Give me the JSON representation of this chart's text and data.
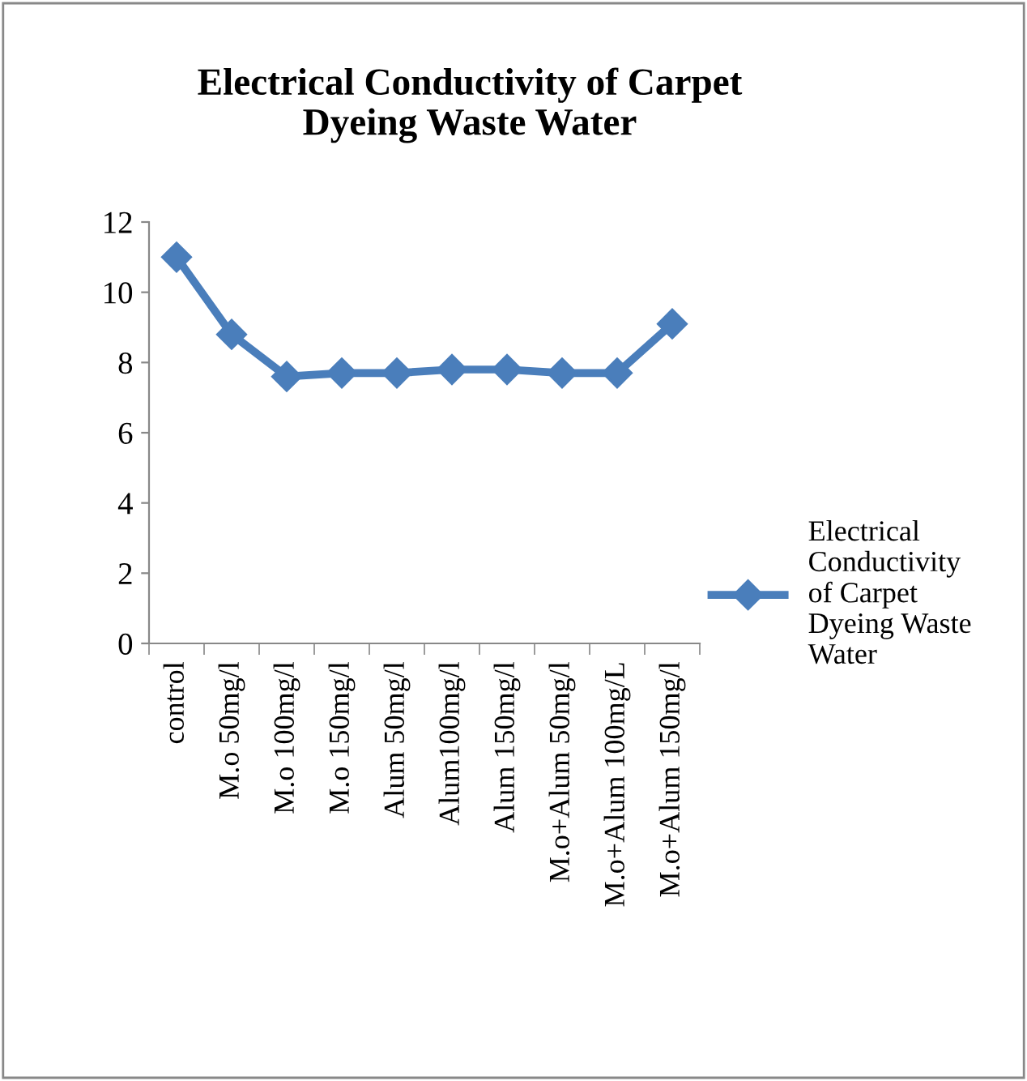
{
  "chart_data": {
    "type": "line",
    "title": "Electrical Conductivity of Carpet\nDyeing Waste Water",
    "categories": [
      "control",
      "M.o 50mg/l",
      "M.o 100mg/l",
      "M.o 150mg/l",
      "Alum 50mg/l",
      "Alum100mg/l",
      "Alum 150mg/l",
      "M.o+Alum 50mg/l",
      "M.o+Alum 100mg/L",
      "M.o+Alum 150mg/l"
    ],
    "series": [
      {
        "name": "Electrical\nConductivity\nof Carpet\nDyeing Waste\nWater",
        "color": "#4a7ebb",
        "values": [
          11.0,
          8.8,
          7.6,
          7.7,
          7.7,
          7.8,
          7.8,
          7.7,
          7.7,
          9.1
        ]
      }
    ],
    "ylim": [
      0,
      12
    ],
    "yticks": [
      0,
      2,
      4,
      6,
      8,
      10,
      12
    ],
    "grid": false,
    "legend": "right",
    "marker": "diamond",
    "line_style": "solid"
  }
}
